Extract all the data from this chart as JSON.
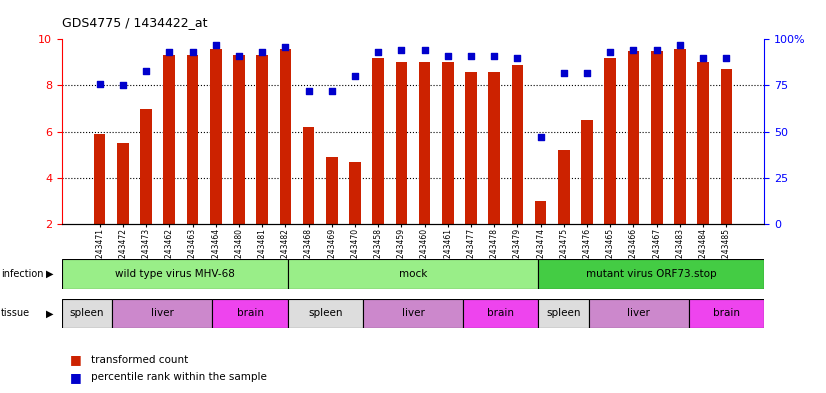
{
  "title": "GDS4775 / 1434422_at",
  "samples": [
    "GSM1243471",
    "GSM1243472",
    "GSM1243473",
    "GSM1243462",
    "GSM1243463",
    "GSM1243464",
    "GSM1243480",
    "GSM1243481",
    "GSM1243482",
    "GSM1243468",
    "GSM1243469",
    "GSM1243470",
    "GSM1243458",
    "GSM1243459",
    "GSM1243460",
    "GSM1243461",
    "GSM1243477",
    "GSM1243478",
    "GSM1243479",
    "GSM1243474",
    "GSM1243475",
    "GSM1243476",
    "GSM1243465",
    "GSM1243466",
    "GSM1243467",
    "GSM1243483",
    "GSM1243484",
    "GSM1243485"
  ],
  "bar_values": [
    5.9,
    5.5,
    7.0,
    9.3,
    9.3,
    9.6,
    9.3,
    9.3,
    9.6,
    6.2,
    4.9,
    4.7,
    9.2,
    9.0,
    9.0,
    9.0,
    8.6,
    8.6,
    8.9,
    3.0,
    5.2,
    6.5,
    9.2,
    9.5,
    9.5,
    9.6,
    9.0,
    8.7
  ],
  "percentile_values": [
    76,
    75,
    83,
    93,
    93,
    97,
    91,
    93,
    96,
    72,
    72,
    80,
    93,
    94,
    94,
    91,
    91,
    91,
    90,
    47,
    82,
    82,
    93,
    94,
    94,
    97,
    90,
    90
  ],
  "bar_color": "#cc2200",
  "dot_color": "#0000cc",
  "ylim_left": [
    2,
    10
  ],
  "ylim_right": [
    0,
    100
  ],
  "yticks_left": [
    2,
    4,
    6,
    8,
    10
  ],
  "yticks_right": [
    0,
    25,
    50,
    75,
    100
  ],
  "ytick_right_labels": [
    "0",
    "25",
    "50",
    "75",
    "100%"
  ],
  "infection_groups": [
    {
      "label": "wild type virus MHV-68",
      "start": 0,
      "end": 8,
      "color": "#99ee88"
    },
    {
      "label": "mock",
      "start": 9,
      "end": 18,
      "color": "#99ee88"
    },
    {
      "label": "mutant virus ORF73.stop",
      "start": 19,
      "end": 27,
      "color": "#44cc44"
    }
  ],
  "tissue_groups": [
    {
      "label": "spleen",
      "start": 0,
      "end": 1,
      "color": "#dddddd"
    },
    {
      "label": "liver",
      "start": 2,
      "end": 5,
      "color": "#cc88cc"
    },
    {
      "label": "brain",
      "start": 6,
      "end": 8,
      "color": "#ee44ee"
    },
    {
      "label": "spleen",
      "start": 9,
      "end": 11,
      "color": "#dddddd"
    },
    {
      "label": "liver",
      "start": 12,
      "end": 15,
      "color": "#cc88cc"
    },
    {
      "label": "brain",
      "start": 16,
      "end": 18,
      "color": "#ee44ee"
    },
    {
      "label": "spleen",
      "start": 19,
      "end": 20,
      "color": "#dddddd"
    },
    {
      "label": "liver",
      "start": 21,
      "end": 24,
      "color": "#cc88cc"
    },
    {
      "label": "brain",
      "start": 25,
      "end": 27,
      "color": "#ee44ee"
    }
  ],
  "grid_yticks": [
    4,
    6,
    8
  ],
  "bar_bottom": 2,
  "fig_width": 8.26,
  "fig_height": 3.93,
  "dpi": 100
}
